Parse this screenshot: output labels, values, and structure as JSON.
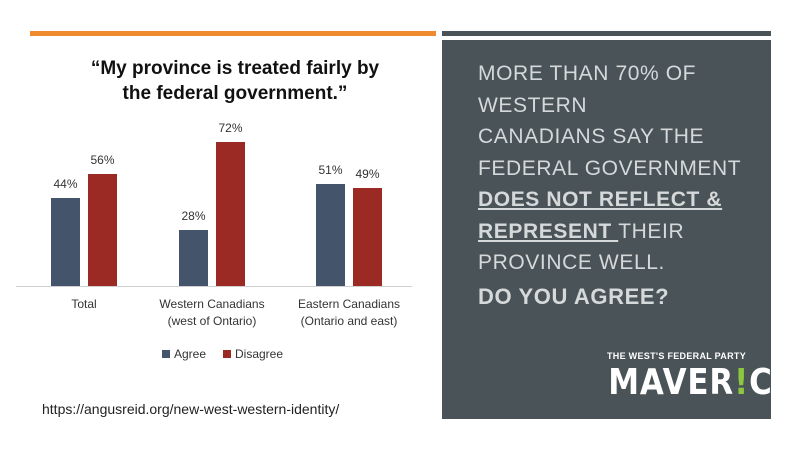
{
  "left": {
    "title_line1": "“My province is treated fairly by",
    "title_line2": "the federal government.”",
    "source": "https://angusreid.org/new-west-western-identity/"
  },
  "chart_data": {
    "type": "bar",
    "categories": [
      [
        "Total"
      ],
      [
        "Western Canadians",
        "(west of Ontario)"
      ],
      [
        "Eastern Canadians",
        "(Ontario and east)"
      ]
    ],
    "series": [
      {
        "name": "Agree",
        "values": [
          44,
          28,
          51
        ],
        "labels": [
          "44%",
          "28%",
          "51%"
        ],
        "color": "#44546a"
      },
      {
        "name": "Disagree",
        "values": [
          56,
          72,
          49
        ],
        "labels": [
          "56%",
          "72%",
          "49%"
        ],
        "color": "#9b2a25"
      }
    ],
    "ylim": [
      0,
      100
    ],
    "grid": false,
    "legend": "bottom"
  },
  "panel": {
    "line1": "MORE THAN 70% OF",
    "line2": "WESTERN",
    "line3": "CANADIANS SAY THE",
    "line4": "FEDERAL GOVERNMENT",
    "line5": "DOES NOT REFLECT &",
    "line6a": "REPRESENT ",
    "line6b": "THEIR",
    "line7": "PROVINCE WELL.",
    "cta": "DO YOU AGREE?",
    "tagline_a": "THE WEST'S ",
    "tagline_b": "FEDERAL",
    "tagline_c": " PARTY",
    "logo_a": "MAVER",
    "logo_bang": "!",
    "logo_b": "CK",
    "bg_color": "#4a5357",
    "accent_color": "#8dc63f"
  },
  "accent_bar_color": "#ef8a2f"
}
